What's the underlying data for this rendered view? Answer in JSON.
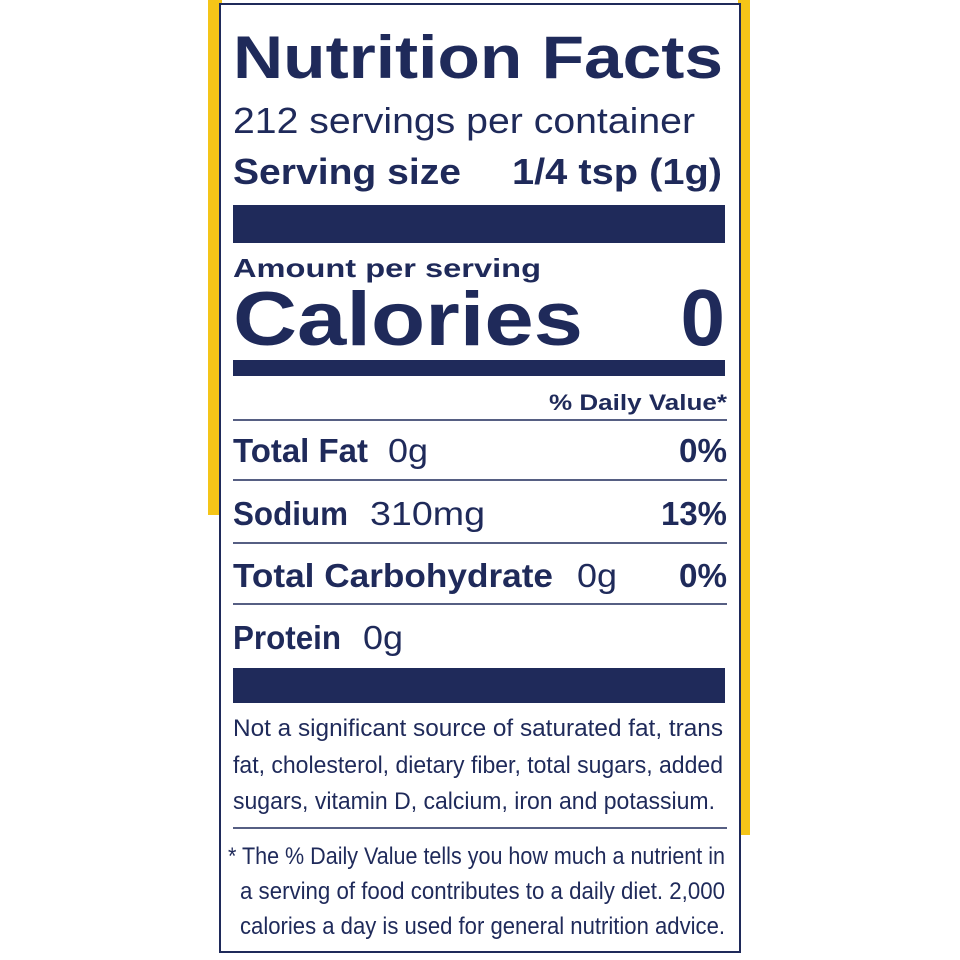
{
  "label": {
    "title": "Nutrition Facts",
    "servings": "212 servings per container",
    "serving_size": {
      "label": "Serving size",
      "value": "1/4 tsp (1g)"
    },
    "amount_per_serving": "Amount per serving",
    "calories": {
      "label": "Calories",
      "value": "0"
    },
    "daily_value_header": "% Daily Value*",
    "nutrients": [
      {
        "name": "Total Fat",
        "amount": "0g",
        "dv": "0%"
      },
      {
        "name": "Sodium",
        "amount": "310mg",
        "dv": "13%"
      },
      {
        "name": "Total Carbohydrate",
        "amount": "0g",
        "dv": "0%"
      },
      {
        "name": "Protein",
        "amount": "0g"
      }
    ],
    "not_significant": [
      "Not a significant source of saturated fat, trans",
      "fat, cholesterol, dietary fiber, total sugars, added",
      "sugars, vitamin D, calcium, iron and potassium."
    ],
    "footnote": [
      "* The % Daily Value tells you how much a nutrient in",
      "a serving of food contributes to a daily diet. 2,000",
      "calories a day is used for general nutrition advice."
    ]
  }
}
